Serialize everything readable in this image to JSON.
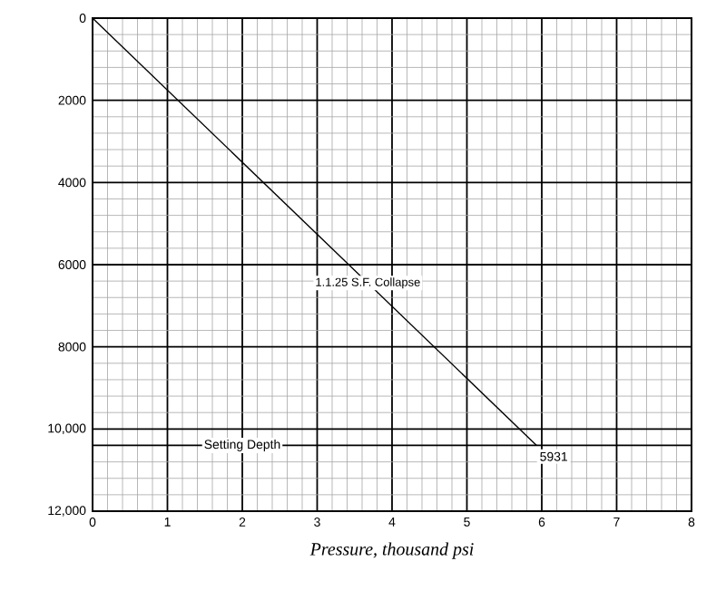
{
  "chart_data": {
    "type": "line",
    "xlabel": "Pressure, thousand psi",
    "x": [
      0,
      5.931
    ],
    "series": [
      {
        "name": "1.1.25 S.F. Collapse",
        "color": "#000000",
        "values": [
          0,
          10400
        ]
      }
    ],
    "xlim": [
      0,
      8
    ],
    "xticks": [
      0,
      1,
      2,
      3,
      4,
      5,
      6,
      7,
      8
    ],
    "ylim": [
      12000,
      0
    ],
    "yticks": [
      0,
      2000,
      4000,
      6000,
      8000,
      {
        "value": 10000,
        "label": "10,000"
      },
      {
        "value": 12000,
        "label": "12,000"
      }
    ],
    "ref_lines": [
      {
        "axis": "y",
        "value": 10400,
        "label": "Setting Depth",
        "color": "#000000"
      }
    ],
    "annotations": [
      {
        "text": "5931",
        "x": 5.931,
        "y": 10400
      }
    ],
    "grid": true,
    "legend": false,
    "marker": "none",
    "line_style": "solid"
  }
}
